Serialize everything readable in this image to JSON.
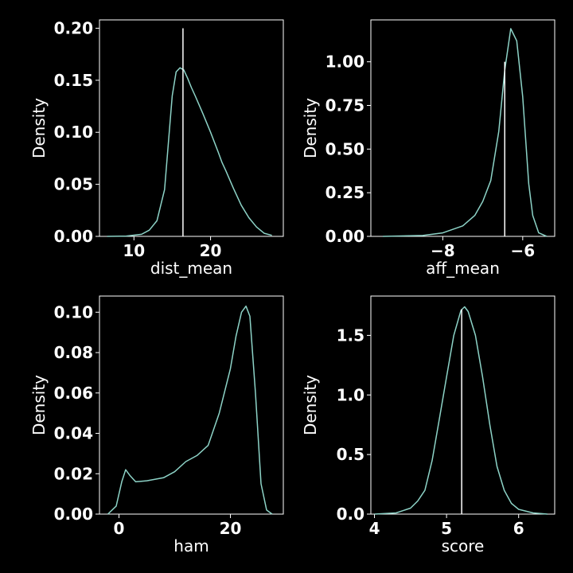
{
  "figure": {
    "background": "#000000",
    "foreground": "#ffffff",
    "curve_color": "#8dd3c7",
    "marker_color": "#ffffff"
  },
  "chart_data": [
    {
      "type": "line",
      "xlabel": "dist_mean",
      "ylabel": "Density",
      "xlim": [
        5.5,
        29.5
      ],
      "ylim": [
        0,
        0.208
      ],
      "xticks": [
        10,
        20
      ],
      "xtick_labels": [
        "10",
        "20"
      ],
      "yticks": [
        0,
        0.05,
        0.1,
        0.15,
        0.2
      ],
      "ytick_labels": [
        "0.00",
        "0.05",
        "0.10",
        "0.15",
        "0.20"
      ],
      "vline": {
        "x": 16.4,
        "y_top": 0.2
      },
      "series": [
        {
          "x": [
            6.5,
            9,
            11,
            12,
            13,
            14,
            14.5,
            15,
            15.5,
            16,
            16.5,
            17,
            17.5,
            18,
            19,
            20,
            21,
            21.5,
            22,
            23,
            24,
            25,
            26,
            27,
            28
          ],
          "y": [
            0.0,
            0.0003,
            0.002,
            0.006,
            0.015,
            0.045,
            0.09,
            0.135,
            0.158,
            0.162,
            0.16,
            0.152,
            0.143,
            0.135,
            0.118,
            0.1,
            0.081,
            0.071,
            0.063,
            0.046,
            0.03,
            0.018,
            0.009,
            0.003,
            0.001
          ]
        }
      ]
    },
    {
      "type": "line",
      "xlabel": "aff_mean",
      "ylabel": "Density",
      "xlim": [
        -9.8,
        -5.2
      ],
      "ylim": [
        0,
        1.24
      ],
      "xticks": [
        -8,
        -6
      ],
      "xtick_labels": [
        "−8",
        "−6"
      ],
      "yticks": [
        0,
        0.25,
        0.5,
        0.75,
        1.0
      ],
      "ytick_labels": [
        "0.00",
        "0.25",
        "0.50",
        "0.75",
        "1.00"
      ],
      "vline": {
        "x": -6.45,
        "y_top": 1.0
      },
      "series": [
        {
          "x": [
            -9.5,
            -8.5,
            -8,
            -7.5,
            -7.2,
            -7,
            -6.8,
            -6.6,
            -6.45,
            -6.3,
            -6.15,
            -6.0,
            -5.85,
            -5.75,
            -5.6,
            -5.4
          ],
          "y": [
            0.0,
            0.005,
            0.02,
            0.06,
            0.12,
            0.2,
            0.32,
            0.6,
            0.95,
            1.19,
            1.12,
            0.8,
            0.3,
            0.12,
            0.02,
            0.0
          ]
        }
      ]
    },
    {
      "type": "line",
      "xlabel": "ham",
      "ylabel": "Density",
      "xlim": [
        -3.5,
        29.5
      ],
      "ylim": [
        0,
        0.108
      ],
      "xticks": [
        0,
        20
      ],
      "xtick_labels": [
        "0",
        "20"
      ],
      "yticks": [
        0,
        0.02,
        0.04,
        0.06,
        0.08,
        0.1
      ],
      "ytick_labels": [
        "0.00",
        "0.02",
        "0.04",
        "0.06",
        "0.08",
        "0.10"
      ],
      "vline": null,
      "series": [
        {
          "x": [
            -2,
            -0.5,
            0.5,
            1.2,
            2,
            3,
            5,
            8,
            10,
            12,
            14,
            16,
            18,
            20,
            21,
            22,
            22.8,
            23.5,
            24.5,
            25.5,
            26.5,
            27.5
          ],
          "y": [
            0.0,
            0.004,
            0.016,
            0.022,
            0.019,
            0.016,
            0.0165,
            0.018,
            0.021,
            0.026,
            0.029,
            0.034,
            0.05,
            0.072,
            0.088,
            0.1,
            0.103,
            0.098,
            0.06,
            0.015,
            0.002,
            0.0
          ]
        }
      ]
    },
    {
      "type": "line",
      "xlabel": "score",
      "ylabel": "Density",
      "xlim": [
        3.95,
        6.5
      ],
      "ylim": [
        0,
        1.83
      ],
      "xticks": [
        4,
        5,
        6
      ],
      "xtick_labels": [
        "4",
        "5",
        "6"
      ],
      "yticks": [
        0,
        0.5,
        1.0,
        1.5
      ],
      "ytick_labels": [
        "0.0",
        "0.5",
        "1.0",
        "1.5"
      ],
      "vline": {
        "x": 5.21,
        "y_top": 1.72
      },
      "series": [
        {
          "x": [
            4.0,
            4.3,
            4.5,
            4.6,
            4.7,
            4.8,
            4.9,
            5.0,
            5.1,
            5.2,
            5.25,
            5.3,
            5.4,
            5.5,
            5.6,
            5.7,
            5.8,
            5.9,
            6.0,
            6.2,
            6.4
          ],
          "y": [
            0.0,
            0.01,
            0.05,
            0.11,
            0.2,
            0.45,
            0.8,
            1.15,
            1.5,
            1.71,
            1.74,
            1.7,
            1.5,
            1.15,
            0.75,
            0.4,
            0.2,
            0.09,
            0.04,
            0.01,
            0.0
          ]
        }
      ]
    }
  ]
}
